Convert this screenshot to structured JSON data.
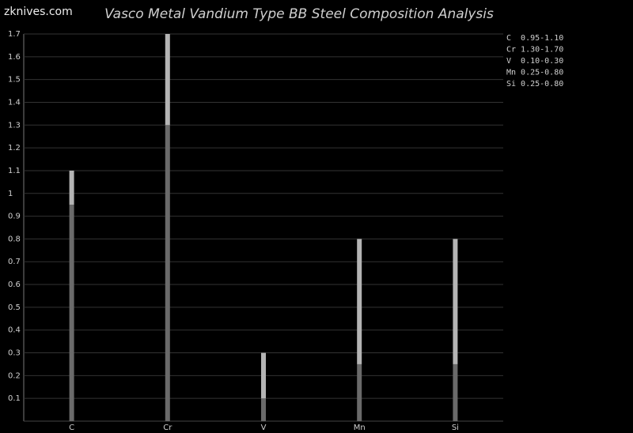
{
  "brand": "zknives.com",
  "chart_data": {
    "type": "range_bar",
    "title": "Vasco Metal Vandium Type BB Steel Composition Analysis",
    "categories": [
      "C",
      "Cr",
      "V",
      "Mn",
      "Si"
    ],
    "low": [
      0.95,
      1.3,
      0.1,
      0.25,
      0.25
    ],
    "high": [
      1.1,
      1.7,
      0.3,
      0.8,
      0.8
    ],
    "low_color": "#6a6a6a",
    "high_color": "#b4b4b4",
    "legend": [
      "C  0.95-1.10",
      "Cr 1.30-1.70",
      "V  0.10-0.30",
      "Mn 0.25-0.80",
      "Si 0.25-0.80"
    ],
    "ylim": [
      0,
      1.7
    ],
    "yticks": [
      0.1,
      0.2,
      0.3,
      0.4,
      0.5,
      0.6,
      0.7,
      0.8,
      0.9,
      1,
      1.1,
      1.2,
      1.3,
      1.4,
      1.5,
      1.6,
      1.7
    ],
    "grid": true
  }
}
